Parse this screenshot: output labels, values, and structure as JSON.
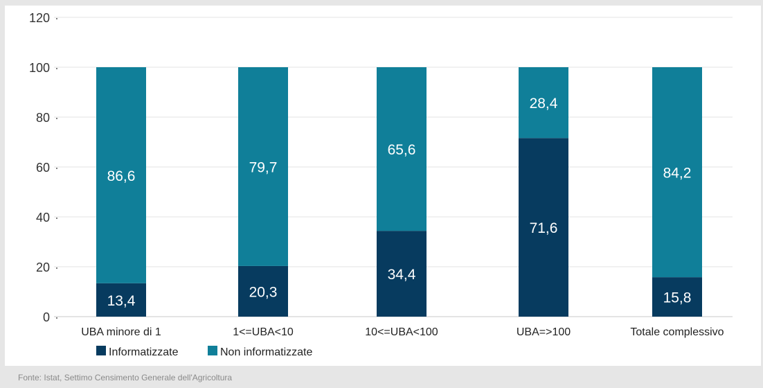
{
  "chart_data": {
    "type": "bar",
    "stacked": true,
    "categories": [
      "UBA minore di 1",
      "1<=UBA<10",
      "10<=UBA<100",
      "UBA=>100",
      "Totale complessivo"
    ],
    "series": [
      {
        "name": "Informatizzate",
        "values": [
          13.4,
          20.3,
          34.4,
          71.6,
          15.8
        ],
        "labels": [
          "13,4",
          "20,3",
          "34,4",
          "71,6",
          "15,8"
        ],
        "color": "#073b5f"
      },
      {
        "name": "Non informatizzate",
        "values": [
          86.6,
          79.7,
          65.6,
          28.4,
          84.2
        ],
        "labels": [
          "86,6",
          "79,7",
          "65,6",
          "28,4",
          "84,2"
        ],
        "color": "#107f99"
      }
    ],
    "ylim": [
      0,
      120
    ],
    "yticks": [
      0,
      20,
      40,
      60,
      80,
      100,
      120
    ],
    "grid": true,
    "legend": "bottom-left"
  },
  "source": "Fonte: Istat, Settimo Censimento Generale dell'Agricoltura"
}
